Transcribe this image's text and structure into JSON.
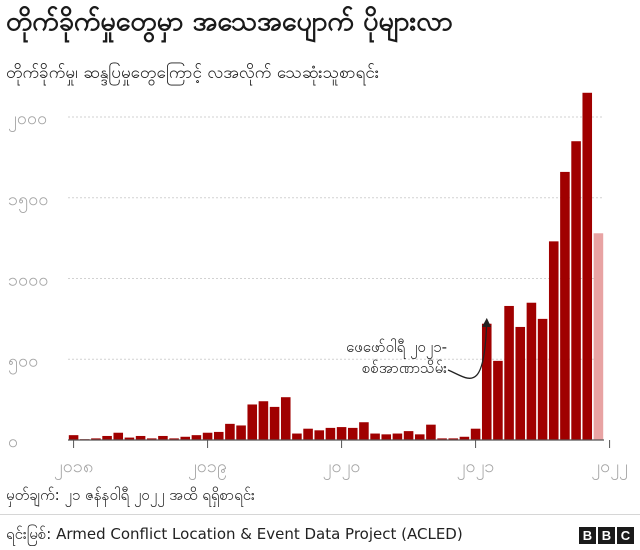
{
  "header": {
    "title": "တိုက်ခိုက်မှုတွေမှာ အသေအပျောက် ပိုများလာ",
    "subtitle": "တိုက်ခိုက်မှု၊ ဆန္ဒပြမှုတွေကြောင့် လအလိုက် သေဆုံးသူစာရင်း"
  },
  "footer": {
    "note": "မှတ်ချက်: ၂၁ ဇန်နဝါရီ ၂၀၂၂ အထိ ရရှိစာရင်း",
    "source": "ရင်းမြစ်: Armed Conflict Location & Event Data Project (ACLED)",
    "logo_letters": [
      "B",
      "B",
      "C"
    ]
  },
  "chart_data": {
    "type": "bar",
    "title": "တိုက်ခိုက်မှုတွေမှာ အသေအပျောက် ပိုများလာ",
    "subtitle": "တိုက်ခိုက်မှု၊ ဆန္ဒပြမှုတွေကြောင့် လအလိုက် သေဆုံးသူစာရင်း",
    "xlabel": "",
    "ylabel": "",
    "ylim": [
      0,
      2000
    ],
    "grid": true,
    "y_ticks": [
      0,
      500,
      1000,
      1500,
      2000
    ],
    "y_tick_labels": [
      "၀",
      "၅၀၀",
      "၁၀၀၀",
      "၁၅၀၀",
      "၂၀၀၀"
    ],
    "x_tick_labels": [
      {
        "label": "၂၀၁၈",
        "index": 0
      },
      {
        "label": "၂၀၁၉",
        "index": 12
      },
      {
        "label": "၂၀၂၀",
        "index": 24
      },
      {
        "label": "၂၀၂၁",
        "index": 36
      },
      {
        "label": "၂၀၂၂",
        "index": 48
      }
    ],
    "values": [
      30,
      5,
      10,
      25,
      45,
      15,
      25,
      10,
      25,
      10,
      20,
      30,
      45,
      50,
      100,
      90,
      220,
      240,
      205,
      265,
      40,
      70,
      60,
      75,
      80,
      75,
      110,
      40,
      35,
      40,
      55,
      35,
      95,
      10,
      10,
      20,
      70,
      720,
      490,
      830,
      700,
      850,
      750,
      1230,
      1660,
      1850,
      2150,
      1280
    ],
    "colors": {
      "main": "#a00000",
      "partial": "#e8a3a3",
      "grid": "#d2d2d2",
      "axis": "#555555"
    },
    "partial_last_month": true,
    "annotation": {
      "lines": [
        "ဖေဖော်ဝါရီ ၂၀၂၁-",
        "စစ်အာဏာသိမ်း"
      ],
      "target_index": 37
    }
  }
}
